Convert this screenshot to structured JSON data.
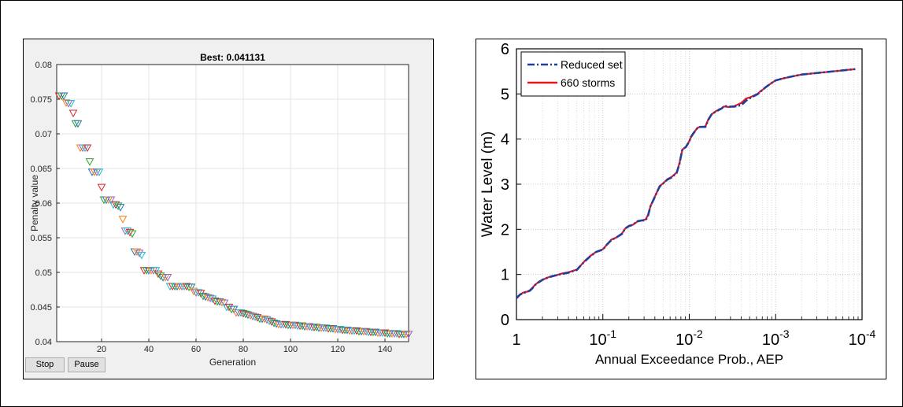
{
  "colors": {
    "marker_cycle": [
      "#d62728",
      "#2ca02c",
      "#1f77b4",
      "#ff7f0e",
      "#9467bd",
      "#17becf"
    ],
    "reduced": "#1f3fa0",
    "storms": "#e8141e"
  },
  "left": {
    "buttons": {
      "stop": "Stop",
      "pause": "Pause"
    }
  },
  "chart_data": [
    {
      "type": "scatter",
      "title": "Best: 0.041131",
      "xlabel": "Generation",
      "ylabel": "Penalty value",
      "xlim": [
        1,
        150
      ],
      "ylim": [
        0.04,
        0.08
      ],
      "xticks": [
        "20",
        "40",
        "60",
        "80",
        "100",
        "120",
        "140"
      ],
      "yticks": [
        "0.04",
        "0.045",
        "0.05",
        "0.055",
        "0.06",
        "0.065",
        "0.07",
        "0.075",
        "0.08"
      ],
      "grid": true,
      "marker": "triangle-down",
      "series": [
        {
          "values": [
            [
              2,
              0.0755
            ],
            [
              3,
              0.0755
            ],
            [
              4,
              0.0755
            ],
            [
              5,
              0.0745
            ],
            [
              6,
              0.0744
            ],
            [
              7,
              0.0744
            ],
            [
              8,
              0.073
            ],
            [
              9,
              0.0715
            ],
            [
              10,
              0.0715
            ],
            [
              11,
              0.068
            ],
            [
              12,
              0.068
            ],
            [
              13,
              0.068
            ],
            [
              14,
              0.068
            ],
            [
              15,
              0.066
            ],
            [
              16,
              0.0645
            ],
            [
              17,
              0.0645
            ],
            [
              18,
              0.0645
            ],
            [
              19,
              0.0645
            ],
            [
              20,
              0.0623
            ],
            [
              21,
              0.0605
            ],
            [
              22,
              0.0605
            ],
            [
              23,
              0.0605
            ],
            [
              24,
              0.0605
            ],
            [
              25,
              0.0598
            ],
            [
              26,
              0.0598
            ],
            [
              27,
              0.0596
            ],
            [
              28,
              0.0594
            ],
            [
              29,
              0.0577
            ],
            [
              30,
              0.056
            ],
            [
              31,
              0.056
            ],
            [
              32,
              0.0558
            ],
            [
              33,
              0.0556
            ],
            [
              34,
              0.053
            ],
            [
              35,
              0.053
            ],
            [
              36,
              0.0528
            ],
            [
              37,
              0.0525
            ],
            [
              38,
              0.0503
            ],
            [
              39,
              0.0503
            ],
            [
              40,
              0.0503
            ],
            [
              41,
              0.0503
            ],
            [
              42,
              0.0503
            ],
            [
              43,
              0.0503
            ],
            [
              44,
              0.0498
            ],
            [
              45,
              0.0495
            ],
            [
              46,
              0.0493
            ],
            [
              47,
              0.0493
            ],
            [
              48,
              0.0493
            ],
            [
              49,
              0.048
            ],
            [
              50,
              0.048
            ],
            [
              51,
              0.048
            ],
            [
              52,
              0.048
            ],
            [
              53,
              0.048
            ],
            [
              54,
              0.048
            ],
            [
              55,
              0.048
            ],
            [
              56,
              0.048
            ],
            [
              57,
              0.0479
            ],
            [
              58,
              0.0479
            ],
            [
              59,
              0.0473
            ],
            [
              60,
              0.0471
            ],
            [
              61,
              0.0471
            ],
            [
              62,
              0.047
            ],
            [
              63,
              0.0466
            ],
            [
              64,
              0.0465
            ],
            [
              65,
              0.0464
            ],
            [
              66,
              0.0463
            ],
            [
              67,
              0.0462
            ],
            [
              68,
              0.0459
            ],
            [
              69,
              0.0458
            ],
            [
              70,
              0.0458
            ],
            [
              71,
              0.0457
            ],
            [
              72,
              0.0456
            ],
            [
              73,
              0.045
            ],
            [
              74,
              0.045
            ],
            [
              75,
              0.0447
            ],
            [
              76,
              0.0447
            ],
            [
              77,
              0.0442
            ],
            [
              78,
              0.0442
            ],
            [
              79,
              0.0442
            ],
            [
              80,
              0.0441
            ],
            [
              81,
              0.044
            ],
            [
              82,
              0.0439
            ],
            [
              83,
              0.0438
            ],
            [
              84,
              0.0437
            ],
            [
              85,
              0.0436
            ],
            [
              86,
              0.0435
            ],
            [
              87,
              0.0433
            ],
            [
              88,
              0.0433
            ],
            [
              89,
              0.0433
            ],
            [
              90,
              0.0432
            ],
            [
              91,
              0.043
            ],
            [
              92,
              0.0429
            ],
            [
              93,
              0.0427
            ],
            [
              94,
              0.0426
            ],
            [
              95,
              0.0425
            ],
            [
              96,
              0.0425
            ],
            [
              97,
              0.0425
            ],
            [
              98,
              0.0425
            ],
            [
              99,
              0.0424
            ],
            [
              100,
              0.0424
            ],
            [
              101,
              0.0424
            ],
            [
              102,
              0.0424
            ],
            [
              103,
              0.0423
            ],
            [
              104,
              0.0423
            ],
            [
              105,
              0.0423
            ],
            [
              106,
              0.0422
            ],
            [
              107,
              0.0422
            ],
            [
              108,
              0.0422
            ],
            [
              109,
              0.0421
            ],
            [
              110,
              0.0421
            ],
            [
              111,
              0.0421
            ],
            [
              112,
              0.042
            ],
            [
              113,
              0.042
            ],
            [
              114,
              0.042
            ],
            [
              115,
              0.042
            ],
            [
              116,
              0.0419
            ],
            [
              117,
              0.0419
            ],
            [
              118,
              0.0419
            ],
            [
              119,
              0.0418
            ],
            [
              120,
              0.0418
            ],
            [
              121,
              0.0418
            ],
            [
              122,
              0.0417
            ],
            [
              123,
              0.0417
            ],
            [
              124,
              0.0417
            ],
            [
              125,
              0.0416
            ],
            [
              126,
              0.0416
            ],
            [
              127,
              0.0416
            ],
            [
              128,
              0.0416
            ],
            [
              129,
              0.0415
            ],
            [
              130,
              0.0415
            ],
            [
              131,
              0.0415
            ],
            [
              132,
              0.0415
            ],
            [
              133,
              0.0414
            ],
            [
              134,
              0.0414
            ],
            [
              135,
              0.0414
            ],
            [
              136,
              0.0414
            ],
            [
              137,
              0.0413
            ],
            [
              138,
              0.0413
            ],
            [
              139,
              0.0413
            ],
            [
              140,
              0.0413
            ],
            [
              141,
              0.0412
            ],
            [
              142,
              0.0412
            ],
            [
              143,
              0.0412
            ],
            [
              144,
              0.0412
            ],
            [
              145,
              0.0412
            ],
            [
              146,
              0.0411
            ],
            [
              147,
              0.0411
            ],
            [
              148,
              0.0411
            ],
            [
              149,
              0.0411
            ],
            [
              150,
              0.0411
            ]
          ]
        }
      ]
    },
    {
      "type": "line",
      "xlabel": "Annual Exceedance Prob., AEP",
      "ylabel": "Water Level (m)",
      "xscale": "log-reversed",
      "xlim": [
        1,
        0.0001
      ],
      "ylim": [
        0,
        6
      ],
      "xticks": [
        {
          "value": 1,
          "base": "1",
          "exp": ""
        },
        {
          "value": 0.1,
          "base": "10",
          "exp": "-1"
        },
        {
          "value": 0.01,
          "base": "10",
          "exp": "-2"
        },
        {
          "value": 0.001,
          "base": "10",
          "exp": "-3"
        },
        {
          "value": 0.0001,
          "base": "10",
          "exp": "-4"
        }
      ],
      "yticks": [
        "0",
        "1",
        "2",
        "3",
        "4",
        "5",
        "6"
      ],
      "grid": true,
      "legend": "top-left",
      "series": [
        {
          "name": "Reduced set",
          "style": "dash-dot",
          "x": [
            1,
            0.95,
            0.9,
            0.85,
            0.8,
            0.75,
            0.7,
            0.65,
            0.6,
            0.55,
            0.5,
            0.45,
            0.4,
            0.35,
            0.3,
            0.25,
            0.2,
            0.18,
            0.16,
            0.14,
            0.12,
            0.1,
            0.09,
            0.08,
            0.07,
            0.06,
            0.055,
            0.05,
            0.045,
            0.04,
            0.035,
            0.032,
            0.03,
            0.028,
            0.026,
            0.024,
            0.022,
            0.02,
            0.018,
            0.016,
            0.014,
            0.013,
            0.012,
            0.011,
            0.0105,
            0.01,
            0.0095,
            0.009,
            0.0085,
            0.008,
            0.0075,
            0.007,
            0.0065,
            0.006,
            0.0055,
            0.005,
            0.0045,
            0.0042,
            0.004,
            0.0038,
            0.0035,
            0.003,
            0.0025,
            0.0022,
            0.002,
            0.0018,
            0.0016,
            0.0015,
            0.0014,
            0.0013,
            0.0012,
            0.0011,
            0.001,
            0.0008,
            0.0006,
            0.0005,
            0.00012
          ],
          "y": [
            0.48,
            0.52,
            0.56,
            0.58,
            0.6,
            0.62,
            0.64,
            0.7,
            0.78,
            0.83,
            0.88,
            0.92,
            0.95,
            0.98,
            1.01,
            1.04,
            1.1,
            1.2,
            1.3,
            1.4,
            1.5,
            1.55,
            1.66,
            1.76,
            1.82,
            1.9,
            2.02,
            2.07,
            2.1,
            2.18,
            2.2,
            2.2,
            2.3,
            2.52,
            2.65,
            2.8,
            2.95,
            3.02,
            3.1,
            3.15,
            3.25,
            3.45,
            3.78,
            3.82,
            3.88,
            3.95,
            4.05,
            4.12,
            4.18,
            4.25,
            4.27,
            4.27,
            4.27,
            4.43,
            4.55,
            4.6,
            4.65,
            4.68,
            4.72,
            4.73,
            4.72,
            4.72,
            4.75,
            4.85,
            4.9,
            4.95,
            5.0,
            5.05,
            5.1,
            5.15,
            5.2,
            5.25,
            5.3,
            5.35,
            5.4,
            5.43,
            5.55
          ]
        },
        {
          "name": "660 storms",
          "style": "solid",
          "x": [
            1,
            0.95,
            0.9,
            0.85,
            0.8,
            0.75,
            0.7,
            0.65,
            0.6,
            0.55,
            0.5,
            0.45,
            0.4,
            0.35,
            0.3,
            0.25,
            0.2,
            0.18,
            0.16,
            0.14,
            0.12,
            0.1,
            0.09,
            0.08,
            0.07,
            0.06,
            0.055,
            0.05,
            0.045,
            0.04,
            0.035,
            0.032,
            0.03,
            0.028,
            0.026,
            0.024,
            0.022,
            0.02,
            0.018,
            0.016,
            0.014,
            0.013,
            0.012,
            0.011,
            0.0105,
            0.01,
            0.0095,
            0.009,
            0.0085,
            0.008,
            0.0075,
            0.007,
            0.0065,
            0.006,
            0.0055,
            0.005,
            0.0045,
            0.0042,
            0.004,
            0.0038,
            0.0035,
            0.003,
            0.0025,
            0.0022,
            0.002,
            0.0018,
            0.0016,
            0.0015,
            0.0014,
            0.0013,
            0.0012,
            0.0011,
            0.001,
            0.0008,
            0.0006,
            0.0005,
            0.00012
          ],
          "y": [
            0.47,
            0.51,
            0.56,
            0.59,
            0.61,
            0.62,
            0.65,
            0.71,
            0.78,
            0.84,
            0.88,
            0.92,
            0.96,
            0.98,
            1.02,
            1.05,
            1.11,
            1.2,
            1.31,
            1.41,
            1.5,
            1.56,
            1.66,
            1.77,
            1.82,
            1.91,
            2.02,
            2.08,
            2.1,
            2.17,
            2.2,
            2.22,
            2.32,
            2.52,
            2.66,
            2.8,
            2.96,
            3.02,
            3.11,
            3.16,
            3.26,
            3.46,
            3.77,
            3.82,
            3.89,
            3.95,
            4.06,
            4.13,
            4.19,
            4.25,
            4.27,
            4.27,
            4.28,
            4.44,
            4.55,
            4.61,
            4.66,
            4.68,
            4.72,
            4.72,
            4.71,
            4.73,
            4.8,
            4.9,
            4.92,
            4.96,
            5.01,
            5.06,
            5.1,
            5.15,
            5.2,
            5.25,
            5.3,
            5.35,
            5.4,
            5.43,
            5.55
          ]
        }
      ]
    }
  ]
}
